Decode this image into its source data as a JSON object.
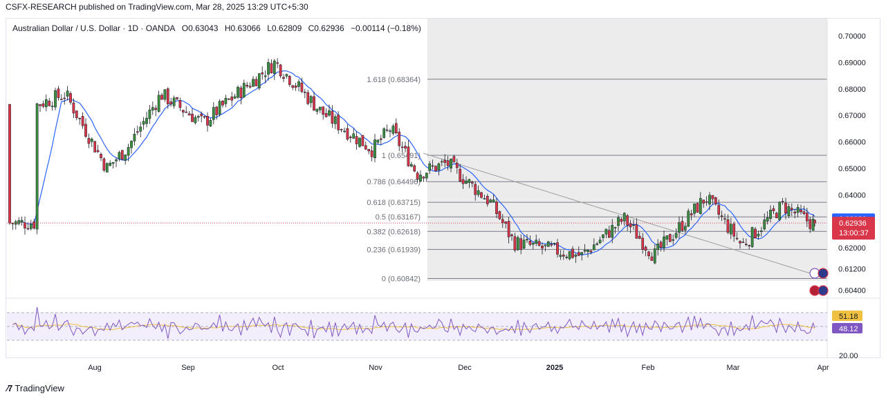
{
  "header": {
    "publisher_line": "CSFX-RESEARCH published on TradingView.com, Mar 28, 2025 13:29 UTC+5:30"
  },
  "legend": {
    "symbol": "Australian Dollar / U.S. Dollar · 1D · OANDA",
    "open": "O0.63043",
    "high": "H0.63066",
    "low": "L0.62809",
    "close": "C0.62936",
    "change": "−0.00114 (−0.18%)"
  },
  "footer": {
    "brand": "TradingView"
  },
  "colors": {
    "up": "#3b8f3e",
    "down": "#d9364a",
    "ma": "#2962ff",
    "rsi": "#7e57c2",
    "rsi_ma": "#f0c040",
    "fib": "#787b86",
    "trendline": "#9e9e9e",
    "zone": "#ececec"
  },
  "price_axis": {
    "labels": [
      "0.70000",
      "0.69000",
      "0.68000",
      "0.67000",
      "0.66000",
      "0.65000",
      "0.64000",
      "0.62000",
      "0.61200",
      "0.60400"
    ],
    "current_price": "0.62936",
    "countdown": "13:00:37",
    "ma_value": "0.63089"
  },
  "rsi_axis": {
    "rsi_value": "48.12",
    "rsi_ma_value": "51.18",
    "bottom_label": "20.00"
  },
  "time_axis": {
    "labels": [
      "Aug",
      "Sep",
      "Oct",
      "Nov",
      "Dec",
      "2025",
      "Feb",
      "Mar",
      "Apr"
    ]
  },
  "fib_levels": [
    {
      "label": "1.618 (0.68364)",
      "price": 0.68364
    },
    {
      "label": "1 (0.65491)",
      "price": 0.65491
    },
    {
      "label": "0.786 (0.64496)",
      "price": 0.64496
    },
    {
      "label": "0.618 (0.63715)",
      "price": 0.63715
    },
    {
      "label": "0.5 (0.63167)",
      "price": 0.63167
    },
    {
      "label": "0.382 (0.62618)",
      "price": 0.62618
    },
    {
      "label": "0.236 (0.61939)",
      "price": 0.61939
    },
    {
      "label": "0 (0.60842)",
      "price": 0.60842
    }
  ],
  "chart_data": {
    "type": "candlestick",
    "title": "Australian Dollar / U.S. Dollar · 1D · OANDA",
    "y_range": [
      0.604,
      0.702
    ],
    "ohlc_anchors": [
      {
        "date": "Jul 12",
        "close": 0.674
      },
      {
        "date": "Jul 22",
        "close": 0.678
      },
      {
        "date": "Aug 5",
        "close": 0.65
      },
      {
        "date": "Aug 12",
        "close": 0.658
      },
      {
        "date": "Aug 23",
        "close": 0.678
      },
      {
        "date": "Sep 6",
        "close": 0.667
      },
      {
        "date": "Sep 13",
        "close": 0.674
      },
      {
        "date": "Sep 30",
        "close": 0.69
      },
      {
        "date": "Oct 15",
        "close": 0.671
      },
      {
        "date": "Oct 31",
        "close": 0.657
      },
      {
        "date": "Nov 6",
        "close": 0.665
      },
      {
        "date": "Nov 15",
        "close": 0.648
      },
      {
        "date": "Nov 25",
        "close": 0.652
      },
      {
        "date": "Dec 10",
        "close": 0.637
      },
      {
        "date": "Dec 18",
        "close": 0.622
      },
      {
        "date": "Jan 10",
        "close": 0.617
      },
      {
        "date": "Jan 24",
        "close": 0.631
      },
      {
        "date": "Feb 3",
        "close": 0.617
      },
      {
        "date": "Feb 20",
        "close": 0.639
      },
      {
        "date": "Mar 4",
        "close": 0.621
      },
      {
        "date": "Mar 18",
        "close": 0.636
      },
      {
        "date": "Mar 28",
        "open": 0.63043,
        "high": 0.63066,
        "low": 0.62809,
        "close": 0.62936
      }
    ],
    "moving_average_last": 0.63089,
    "rsi_last": 48.12,
    "rsi_ma_last": 51.18,
    "x_ticks": [
      "Aug",
      "Sep",
      "Oct",
      "Nov",
      "Dec",
      "2025",
      "Feb",
      "Mar",
      "Apr"
    ]
  }
}
